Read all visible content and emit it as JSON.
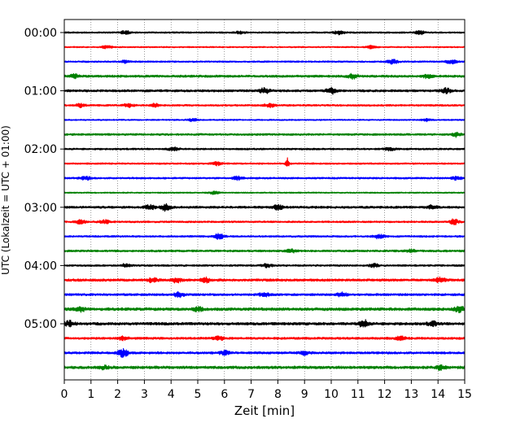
{
  "chart_data": {
    "type": "line",
    "subtype": "helicorder-seismogram",
    "title": "",
    "xlabel": "Zeit  [min]",
    "ylabel": "UTC (Lokalzeit = UTC + 01:00)",
    "xlim": [
      0,
      15
    ],
    "x_ticks": [
      "0",
      "1",
      "2",
      "3",
      "4",
      "5",
      "6",
      "7",
      "8",
      "9",
      "10",
      "11",
      "12",
      "13",
      "14",
      "15"
    ],
    "y_tick_labels": [
      "00:00",
      "01:00",
      "02:00",
      "03:00",
      "04:00",
      "05:00"
    ],
    "trace_interval_min": 15,
    "trace_count": 24,
    "trace_colors": [
      "#000000",
      "#ff0000",
      "#0000ff",
      "#008000"
    ],
    "vertical_grid": "dotted, at every minute",
    "traces": [
      {
        "start": "00:00",
        "color": "#000000",
        "amplitude": 0.18,
        "events": [
          [
            2.3,
            0.35
          ],
          [
            6.6,
            0.3
          ],
          [
            10.3,
            0.4
          ],
          [
            13.3,
            0.45
          ]
        ]
      },
      {
        "start": "00:15",
        "color": "#ff0000",
        "amplitude": 0.15,
        "events": [
          [
            1.6,
            0.3
          ],
          [
            11.5,
            0.3
          ]
        ]
      },
      {
        "start": "00:30",
        "color": "#0000ff",
        "amplitude": 0.18,
        "events": [
          [
            2.3,
            0.3
          ],
          [
            12.3,
            0.5
          ],
          [
            14.5,
            0.4
          ]
        ]
      },
      {
        "start": "00:45",
        "color": "#008000",
        "amplitude": 0.25,
        "events": [
          [
            0.4,
            0.4
          ],
          [
            10.8,
            0.5
          ],
          [
            13.6,
            0.35
          ]
        ]
      },
      {
        "start": "01:00",
        "color": "#000000",
        "amplitude": 0.25,
        "events": [
          [
            7.5,
            0.6
          ],
          [
            10.0,
            0.7
          ],
          [
            14.3,
            0.5
          ]
        ]
      },
      {
        "start": "01:15",
        "color": "#ff0000",
        "amplitude": 0.2,
        "events": [
          [
            0.6,
            0.35
          ],
          [
            2.4,
            0.35
          ],
          [
            3.4,
            0.35
          ],
          [
            7.7,
            0.4
          ]
        ]
      },
      {
        "start": "01:30",
        "color": "#0000ff",
        "amplitude": 0.15,
        "events": [
          [
            4.8,
            0.3
          ],
          [
            13.6,
            0.3
          ]
        ]
      },
      {
        "start": "01:45",
        "color": "#008000",
        "amplitude": 0.22,
        "events": [
          [
            14.7,
            0.5
          ]
        ]
      },
      {
        "start": "02:00",
        "color": "#000000",
        "amplitude": 0.2,
        "events": [
          [
            4.1,
            0.45
          ],
          [
            12.2,
            0.35
          ]
        ]
      },
      {
        "start": "02:15",
        "color": "#ff0000",
        "amplitude": 0.18,
        "events": [
          [
            5.7,
            0.35
          ],
          [
            8.35,
            1.4
          ]
        ]
      },
      {
        "start": "02:30",
        "color": "#0000ff",
        "amplitude": 0.2,
        "events": [
          [
            0.8,
            0.35
          ],
          [
            6.5,
            0.35
          ],
          [
            14.7,
            0.4
          ]
        ]
      },
      {
        "start": "02:45",
        "color": "#008000",
        "amplitude": 0.15,
        "events": [
          [
            5.6,
            0.3
          ]
        ]
      },
      {
        "start": "03:00",
        "color": "#000000",
        "amplitude": 0.25,
        "events": [
          [
            3.2,
            0.55
          ],
          [
            3.8,
            0.7
          ],
          [
            8.0,
            0.5
          ],
          [
            13.8,
            0.4
          ]
        ]
      },
      {
        "start": "03:15",
        "color": "#ff0000",
        "amplitude": 0.2,
        "events": [
          [
            0.6,
            0.4
          ],
          [
            1.5,
            0.4
          ],
          [
            14.6,
            0.55
          ]
        ]
      },
      {
        "start": "03:30",
        "color": "#0000ff",
        "amplitude": 0.2,
        "events": [
          [
            5.8,
            0.55
          ],
          [
            11.8,
            0.5
          ]
        ]
      },
      {
        "start": "03:45",
        "color": "#008000",
        "amplitude": 0.22,
        "events": [
          [
            8.5,
            0.35
          ],
          [
            13.0,
            0.3
          ]
        ]
      },
      {
        "start": "04:00",
        "color": "#000000",
        "amplitude": 0.2,
        "events": [
          [
            2.3,
            0.35
          ],
          [
            7.6,
            0.35
          ],
          [
            11.6,
            0.35
          ]
        ]
      },
      {
        "start": "04:15",
        "color": "#ff0000",
        "amplitude": 0.28,
        "events": [
          [
            3.3,
            0.45
          ],
          [
            4.2,
            0.45
          ],
          [
            5.3,
            0.45
          ],
          [
            14.1,
            0.5
          ]
        ]
      },
      {
        "start": "04:30",
        "color": "#0000ff",
        "amplitude": 0.25,
        "events": [
          [
            4.3,
            0.5
          ],
          [
            7.5,
            0.4
          ],
          [
            10.4,
            0.4
          ]
        ]
      },
      {
        "start": "04:45",
        "color": "#008000",
        "amplitude": 0.32,
        "events": [
          [
            0.6,
            0.45
          ],
          [
            5.0,
            0.4
          ],
          [
            14.8,
            0.55
          ]
        ]
      },
      {
        "start": "05:00",
        "color": "#000000",
        "amplitude": 0.3,
        "events": [
          [
            0.2,
            0.55
          ],
          [
            11.2,
            0.9
          ],
          [
            13.8,
            0.45
          ]
        ]
      },
      {
        "start": "05:15",
        "color": "#ff0000",
        "amplitude": 0.25,
        "events": [
          [
            2.2,
            0.4
          ],
          [
            5.8,
            0.4
          ],
          [
            12.6,
            0.35
          ]
        ]
      },
      {
        "start": "05:30",
        "color": "#0000ff",
        "amplitude": 0.25,
        "events": [
          [
            2.2,
            0.85
          ],
          [
            6.0,
            0.45
          ],
          [
            9.0,
            0.4
          ]
        ]
      },
      {
        "start": "05:45",
        "color": "#008000",
        "amplitude": 0.3,
        "events": [
          [
            14.1,
            0.5
          ],
          [
            1.5,
            0.35
          ]
        ]
      }
    ]
  }
}
